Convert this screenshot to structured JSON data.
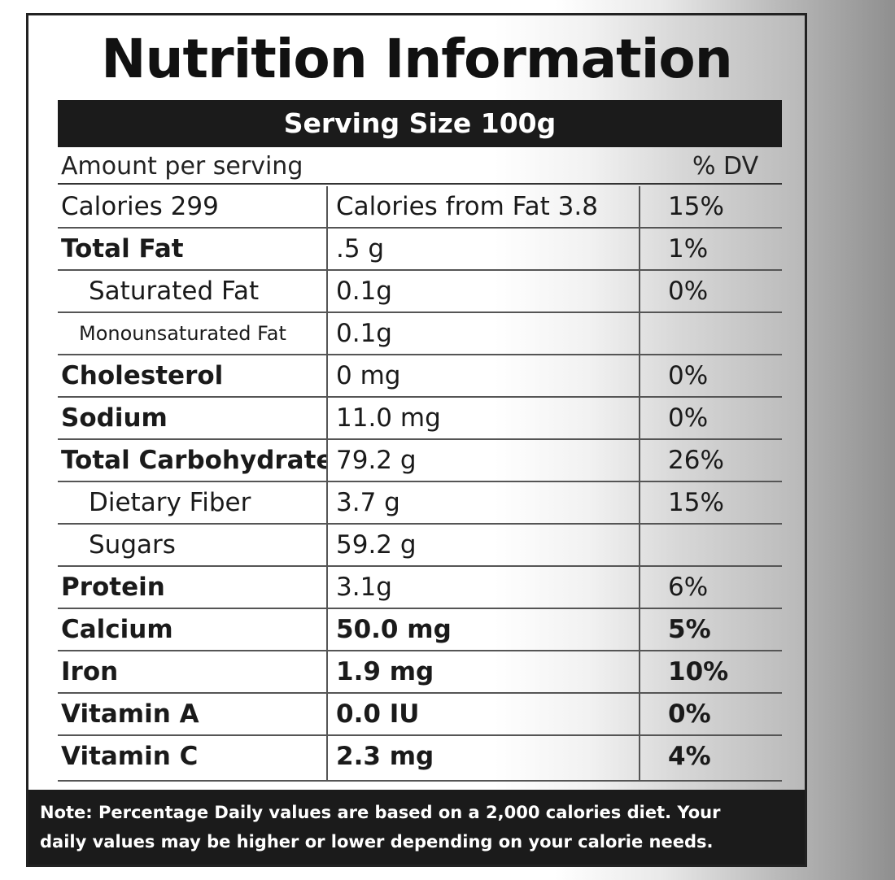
{
  "title": "Nutrition Information",
  "serving_size": "Serving Size 100g",
  "amount_per_serving": "Amount per serving",
  "dv_header": "% DV",
  "rows": [
    {
      "name": "Calories 299",
      "amount": "Calories from Fat 3.8",
      "dv": "15%",
      "style": "normal"
    },
    {
      "name": "Total Fat",
      "amount": ".5 g",
      "dv": "1%",
      "style": "bold"
    },
    {
      "name": "Saturated Fat",
      "amount": "0.1g",
      "dv": "0%",
      "style": "indent"
    },
    {
      "name": "Monounsaturated Fat",
      "amount": "0.1g",
      "dv": "",
      "style": "indent-small"
    },
    {
      "name": "Cholesterol",
      "amount": "0 mg",
      "dv": "0%",
      "style": "bold"
    },
    {
      "name": "Sodium",
      "amount": "11.0 mg",
      "dv": "0%",
      "style": "bold"
    },
    {
      "name": "Total Carbohydrate",
      "amount": "79.2 g",
      "dv": "26%",
      "style": "bold"
    },
    {
      "name": "Dietary Fiber",
      "amount": "3.7 g",
      "dv": "15%",
      "style": "indent"
    },
    {
      "name": "Sugars",
      "amount": "59.2 g",
      "dv": "",
      "style": "indent"
    },
    {
      "name": "Protein",
      "amount": "3.1g",
      "dv": "6%",
      "style": "bold"
    },
    {
      "name": "Calcium",
      "amount": "50.0 mg",
      "dv": "5%",
      "style": "bold-all"
    },
    {
      "name": "Iron",
      "amount": "1.9 mg",
      "dv": "10%",
      "style": "bold-all"
    },
    {
      "name": "Vitamin A",
      "amount": "0.0 IU",
      "dv": "0%",
      "style": "bold-all"
    },
    {
      "name": "Vitamin C",
      "amount": "2.3 mg",
      "dv": "4%",
      "style": "bold-all"
    }
  ],
  "note_line1": "Note: Percentage Daily values are based on a 2,000 calories diet. Your",
  "note_line2": "daily values may be higher or lower depending on your calorie needs."
}
